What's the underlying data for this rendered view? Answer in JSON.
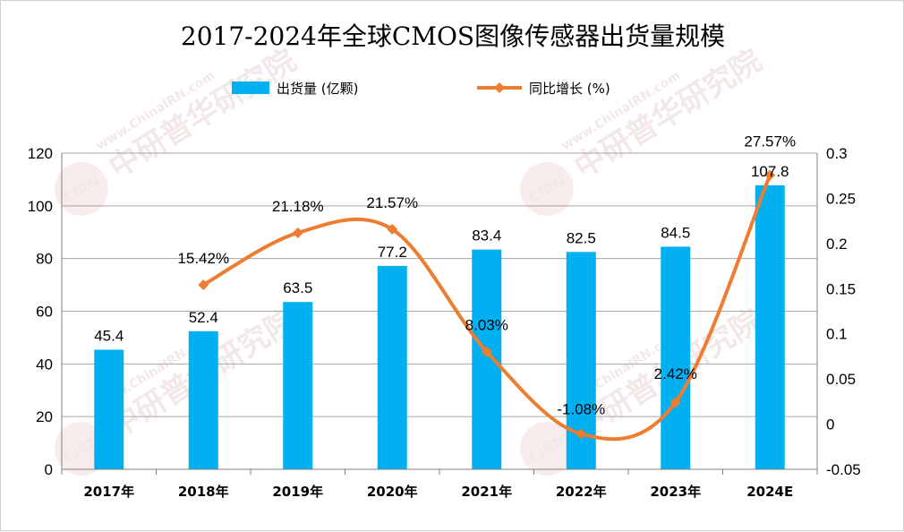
{
  "chart_data": {
    "type": "bar",
    "title": "2017-2024年全球CMOS图像传感器出货量规模",
    "categories": [
      "2017年",
      "2018年",
      "2019年",
      "2020年",
      "2021年",
      "2022年",
      "2023年",
      "2024E"
    ],
    "series": [
      {
        "name": "出货量 (亿颗)",
        "type": "bar",
        "axis": "left",
        "color": "#00b0f0",
        "values": [
          45.4,
          52.4,
          63.5,
          77.2,
          83.4,
          82.5,
          84.5,
          107.8
        ],
        "labels": [
          "45.4",
          "52.4",
          "63.5",
          "77.2",
          "83.4",
          "82.5",
          "84.5",
          "107.8"
        ]
      },
      {
        "name": "同比增长 (%)",
        "type": "line",
        "axis": "right",
        "color": "#ed7d31",
        "values": [
          null,
          0.1542,
          0.2118,
          0.2157,
          0.0803,
          -0.0108,
          0.0242,
          0.2757
        ],
        "labels": [
          "",
          "15.42%",
          "21.18%",
          "21.57%",
          "8.03%",
          "-1.08%",
          "2.42%",
          "27.57%"
        ]
      }
    ],
    "y_left": {
      "min": 0,
      "max": 120,
      "ticks": [
        "0",
        "20",
        "40",
        "60",
        "80",
        "100",
        "120"
      ]
    },
    "y_right": {
      "min": -0.05,
      "max": 0.3,
      "ticks": [
        "-0.05",
        "0",
        "0.05",
        "0.1",
        "0.15",
        "0.2",
        "0.25",
        "0.3"
      ]
    },
    "grid": true,
    "legend_position": "top"
  },
  "watermark": {
    "text": "中研普华研究院",
    "url_text": "www.ChinaIRN.com",
    "logo_text": "CIRN"
  }
}
